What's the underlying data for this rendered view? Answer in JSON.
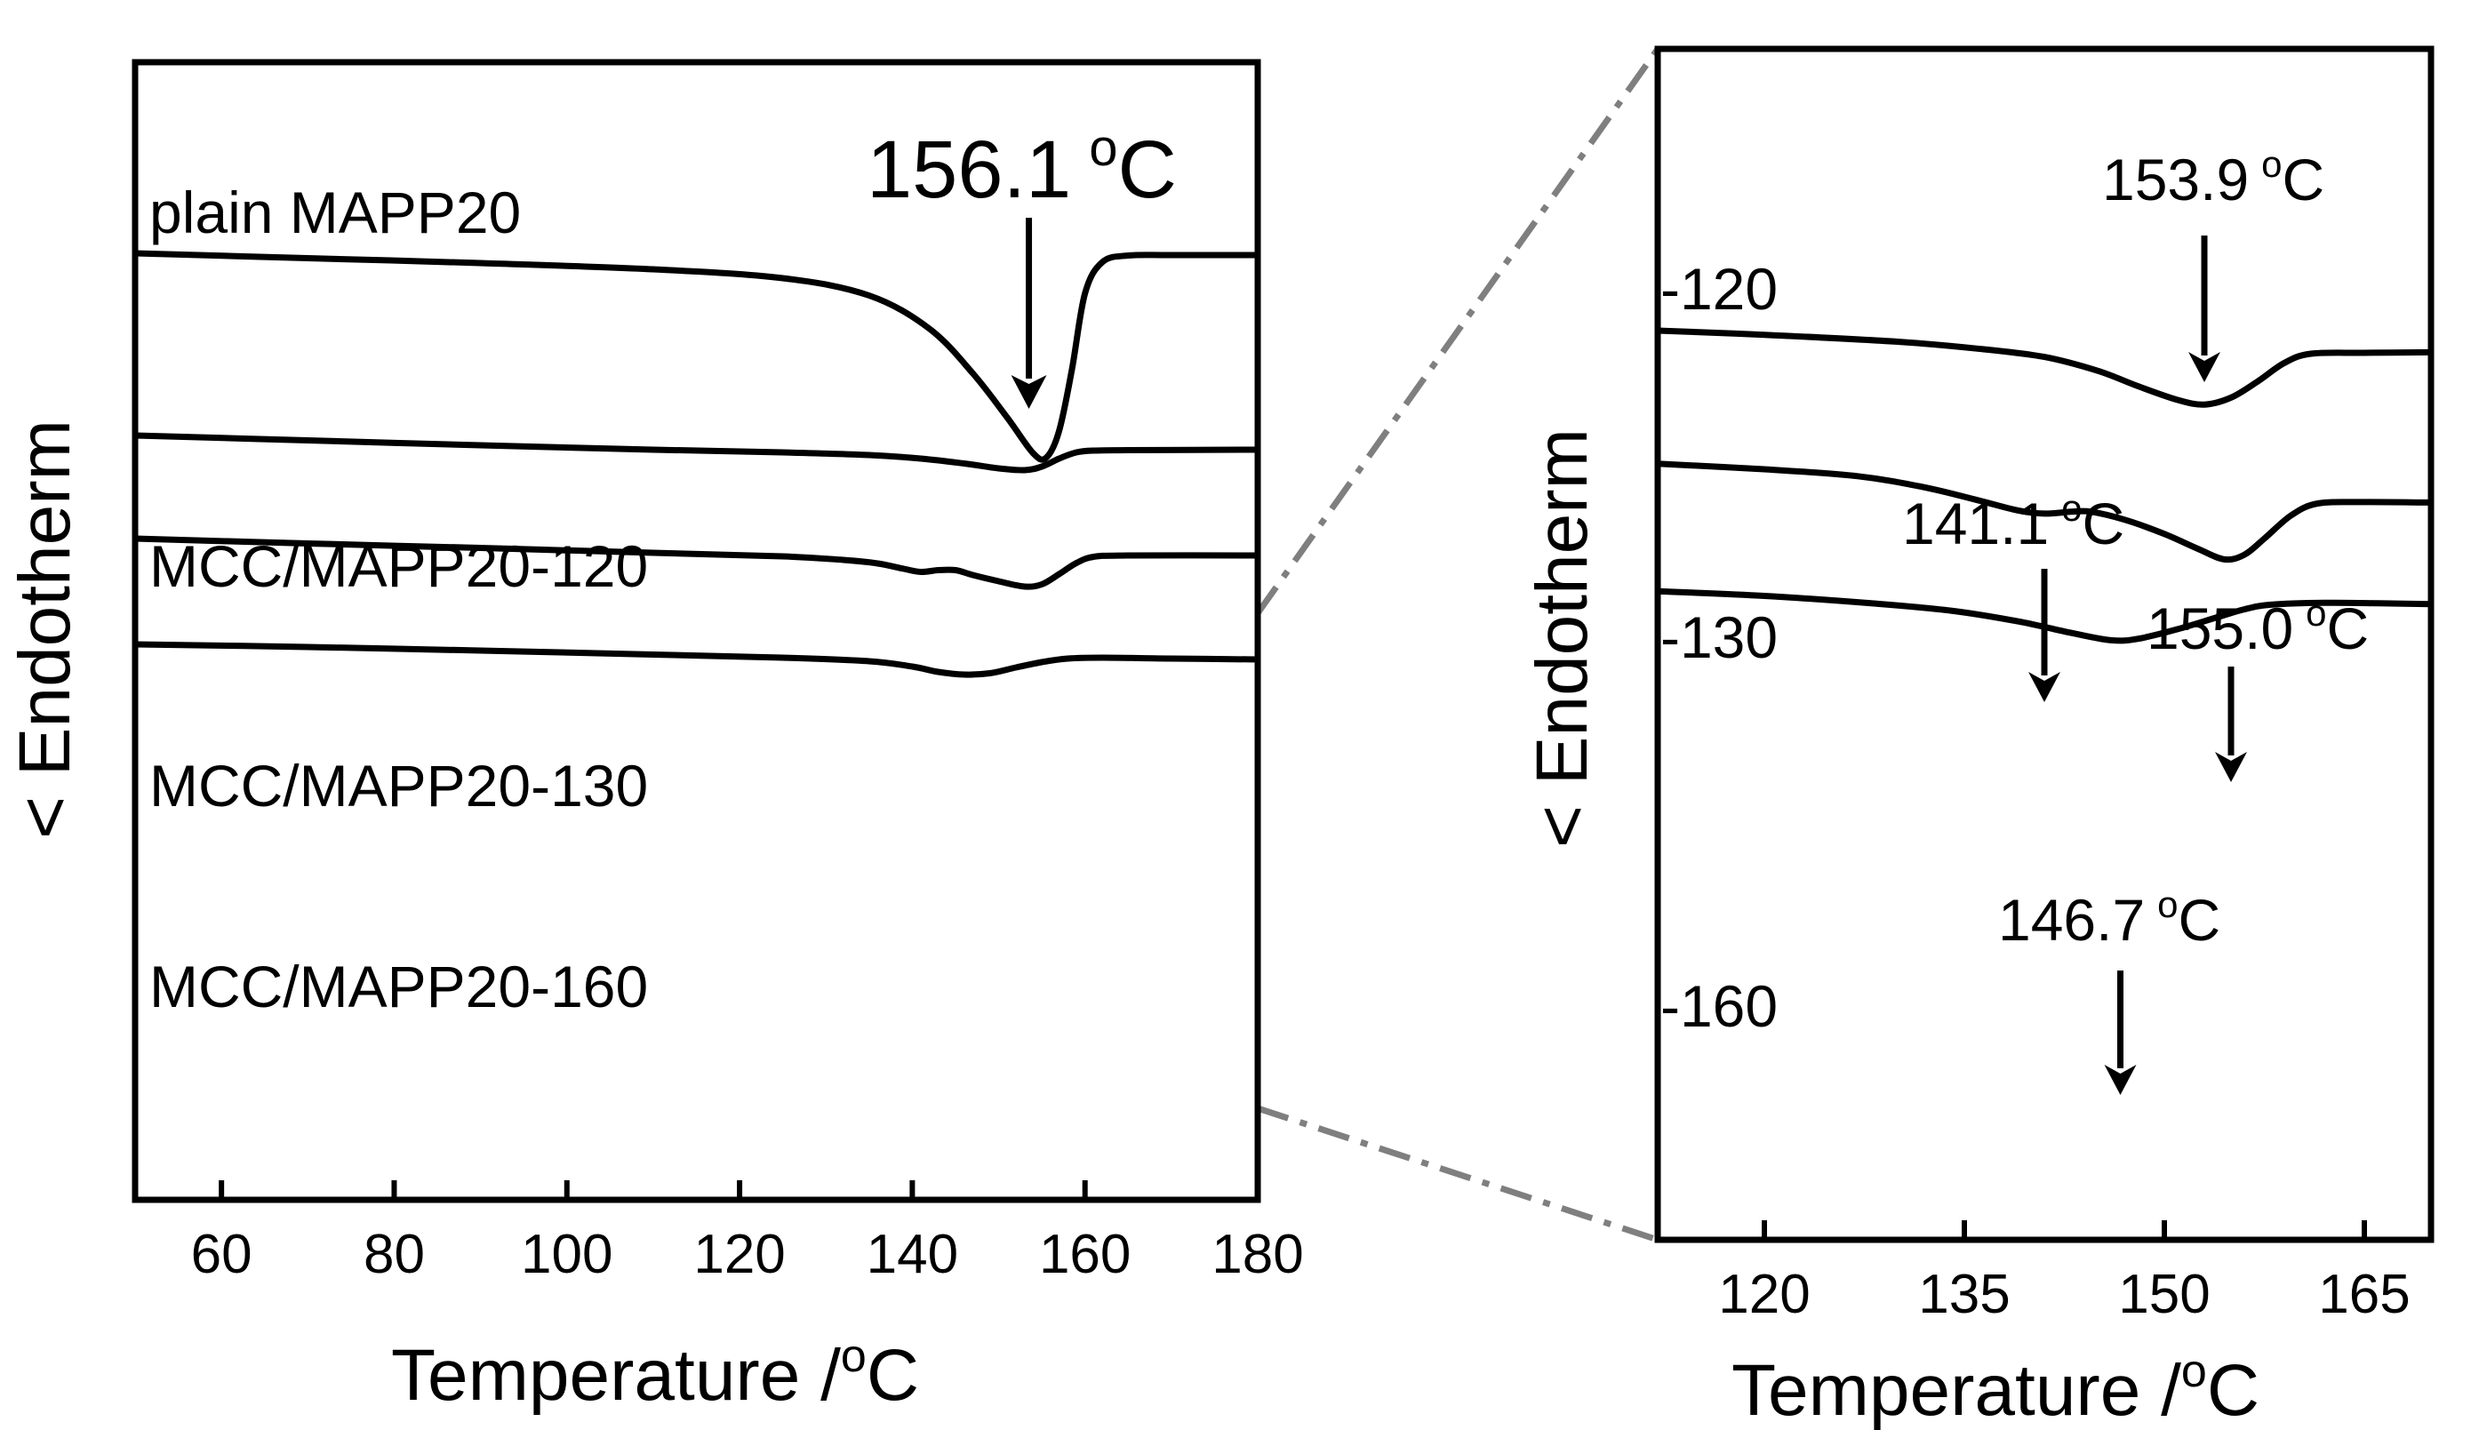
{
  "chart_data": [
    {
      "id": "left",
      "type": "line",
      "xlabel": "Temperature /",
      "xlabel_unit": "C",
      "degree_sign": "o",
      "ylabel": "< Endotherm",
      "xlim": [
        50,
        180
      ],
      "xticks": [
        60,
        80,
        100,
        120,
        140,
        160,
        180
      ],
      "grid": false,
      "series": [
        {
          "name": "plain MAPP20",
          "points": [
            [
              50,
              0.0
            ],
            [
              70,
              0.11
            ],
            [
              90,
              0.22
            ],
            [
              110,
              0.36
            ],
            [
              125,
              0.56
            ],
            [
              135,
              0.95
            ],
            [
              142,
              1.7
            ],
            [
              147,
              2.7
            ],
            [
              151,
              3.7
            ],
            [
              154,
              4.5
            ],
            [
              155.5,
              4.6
            ],
            [
              157,
              4.0
            ],
            [
              158.5,
              2.6
            ],
            [
              160,
              0.9
            ],
            [
              162,
              0.2
            ],
            [
              165,
              0.05
            ],
            [
              170,
              0.04
            ],
            [
              180,
              0.04
            ]
          ]
        },
        {
          "name": "MCC/MAPP20-120",
          "points": [
            [
              50,
              4.1
            ],
            [
              70,
              4.21
            ],
            [
              90,
              4.32
            ],
            [
              110,
              4.42
            ],
            [
              125,
              4.48
            ],
            [
              135,
              4.54
            ],
            [
              141,
              4.62
            ],
            [
              146,
              4.73
            ],
            [
              150,
              4.84
            ],
            [
              153,
              4.88
            ],
            [
              155,
              4.8
            ],
            [
              157,
              4.62
            ],
            [
              159,
              4.48
            ],
            [
              161,
              4.44
            ],
            [
              165,
              4.43
            ],
            [
              180,
              4.42
            ]
          ]
        },
        {
          "name": "MCC/MAPP20-130",
          "points": [
            [
              50,
              6.42
            ],
            [
              70,
              6.53
            ],
            [
              90,
              6.63
            ],
            [
              110,
              6.74
            ],
            [
              125,
              6.82
            ],
            [
              132,
              6.9
            ],
            [
              136,
              6.98
            ],
            [
              139,
              7.1
            ],
            [
              141,
              7.17
            ],
            [
              143,
              7.13
            ],
            [
              145,
              7.13
            ],
            [
              147,
              7.24
            ],
            [
              150,
              7.38
            ],
            [
              153,
              7.5
            ],
            [
              155,
              7.45
            ],
            [
              157,
              7.22
            ],
            [
              159,
              6.97
            ],
            [
              161,
              6.83
            ],
            [
              165,
              6.8
            ],
            [
              180,
              6.8
            ]
          ]
        },
        {
          "name": "MCC/MAPP20-160",
          "points": [
            [
              50,
              8.8
            ],
            [
              70,
              8.86
            ],
            [
              90,
              8.94
            ],
            [
              110,
              9.03
            ],
            [
              125,
              9.1
            ],
            [
              135,
              9.18
            ],
            [
              140,
              9.3
            ],
            [
              143,
              9.42
            ],
            [
              146,
              9.48
            ],
            [
              149,
              9.45
            ],
            [
              152,
              9.32
            ],
            [
              155,
              9.2
            ],
            [
              158,
              9.12
            ],
            [
              162,
              9.1
            ],
            [
              170,
              9.12
            ],
            [
              180,
              9.14
            ]
          ]
        }
      ],
      "labels": [
        {
          "text": "plain MAPP20"
        },
        {
          "text": "MCC/MAPP20-120"
        },
        {
          "text": "MCC/MAPP20-130"
        },
        {
          "text": "MCC/MAPP20-160"
        }
      ],
      "annotations": [
        {
          "value": "156.1",
          "unit": "C",
          "x": 153.5
        }
      ]
    },
    {
      "id": "right",
      "type": "line",
      "xlabel": "Temperature /",
      "xlabel_unit": "C",
      "degree_sign": "o",
      "ylabel": "< Endotherm",
      "xlim": [
        112,
        170
      ],
      "xticks": [
        120,
        135,
        150,
        165
      ],
      "grid": false,
      "series": [
        {
          "name": "-120",
          "points": [
            [
              112,
              0.0
            ],
            [
              120,
              0.09
            ],
            [
              130,
              0.24
            ],
            [
              136,
              0.39
            ],
            [
              141,
              0.57
            ],
            [
              145,
              0.87
            ],
            [
              148,
              1.2
            ],
            [
              151,
              1.5
            ],
            [
              153,
              1.6
            ],
            [
              155,
              1.45
            ],
            [
              157,
              1.1
            ],
            [
              159,
              0.7
            ],
            [
              161,
              0.5
            ],
            [
              165,
              0.48
            ],
            [
              170,
              0.47
            ]
          ]
        },
        {
          "name": "-130",
          "points": [
            [
              112,
              2.88
            ],
            [
              120,
              3.0
            ],
            [
              127,
              3.15
            ],
            [
              132,
              3.39
            ],
            [
              136,
              3.67
            ],
            [
              139,
              3.89
            ],
            [
              141,
              3.96
            ],
            [
              143,
              3.92
            ],
            [
              144.5,
              3.92
            ],
            [
              147,
              4.09
            ],
            [
              150,
              4.4
            ],
            [
              152.5,
              4.72
            ],
            [
              154.5,
              4.95
            ],
            [
              156,
              4.85
            ],
            [
              157.5,
              4.5
            ],
            [
              159.5,
              4.0
            ],
            [
              161.5,
              3.74
            ],
            [
              165,
              3.71
            ],
            [
              170,
              3.72
            ]
          ]
        },
        {
          "name": "-160",
          "points": [
            [
              112,
              5.64
            ],
            [
              120,
              5.74
            ],
            [
              128,
              5.9
            ],
            [
              134,
              6.06
            ],
            [
              139,
              6.29
            ],
            [
              143,
              6.54
            ],
            [
              146,
              6.7
            ],
            [
              148,
              6.67
            ],
            [
              151,
              6.46
            ],
            [
              154,
              6.2
            ],
            [
              156,
              6.03
            ],
            [
              158,
              5.93
            ],
            [
              162,
              5.89
            ],
            [
              166,
              5.9
            ],
            [
              170,
              5.92
            ]
          ]
        }
      ],
      "labels": [
        {
          "text": "-120"
        },
        {
          "text": "-130"
        },
        {
          "text": "-160"
        }
      ],
      "annotations": [
        {
          "value": "153.9",
          "unit": "C",
          "x": 153
        },
        {
          "value": "141.1",
          "unit": "C",
          "x": 141
        },
        {
          "value": "155.0",
          "unit": "C",
          "x": 155
        },
        {
          "value": "146.7",
          "unit": "C",
          "x": 146.7
        }
      ]
    }
  ]
}
